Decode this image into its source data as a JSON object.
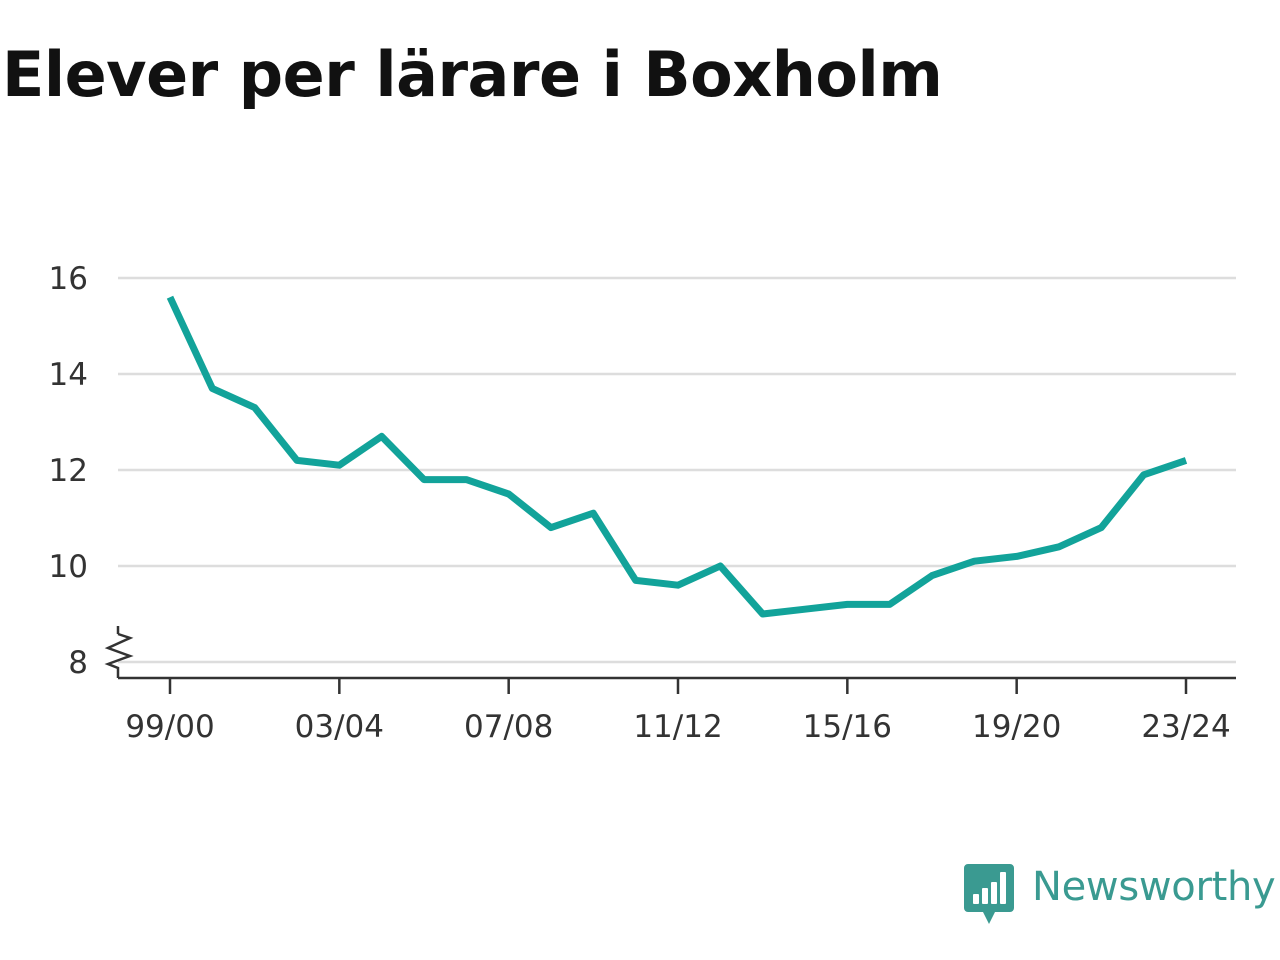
{
  "title": "Elever per lärare i Boxholm",
  "brand": {
    "name": "Newsworthy",
    "logo_icon": "newsworthy-bar-chart-bubble-icon",
    "color": "#3a9a91"
  },
  "chart_data": {
    "type": "line",
    "title": "Elever per lärare i Boxholm",
    "xlabel": "",
    "ylabel": "",
    "x": [
      "99/00",
      "00/01",
      "01/02",
      "02/03",
      "03/04",
      "04/05",
      "05/06",
      "06/07",
      "07/08",
      "08/09",
      "09/10",
      "10/11",
      "11/12",
      "12/13",
      "13/14",
      "14/15",
      "15/16",
      "16/17",
      "17/18",
      "18/19",
      "19/20",
      "20/21",
      "21/22",
      "22/23",
      "23/24"
    ],
    "x_tick_labels": [
      "99/00",
      "03/04",
      "07/08",
      "11/12",
      "15/16",
      "19/20",
      "23/24"
    ],
    "series": [
      {
        "values": [
          15.6,
          13.7,
          13.3,
          12.2,
          12.1,
          12.7,
          11.8,
          11.8,
          11.5,
          10.8,
          11.1,
          9.7,
          9.6,
          10.0,
          9.0,
          9.1,
          9.2,
          9.2,
          9.8,
          10.1,
          10.2,
          10.4,
          10.8,
          11.9,
          12.2
        ],
        "color": "#12a39a"
      }
    ],
    "yticks": [
      8,
      10,
      12,
      14,
      16
    ],
    "ylim": [
      8,
      16
    ],
    "y_axis_break": true,
    "grid": true,
    "gridline_color": "#dddddd"
  }
}
